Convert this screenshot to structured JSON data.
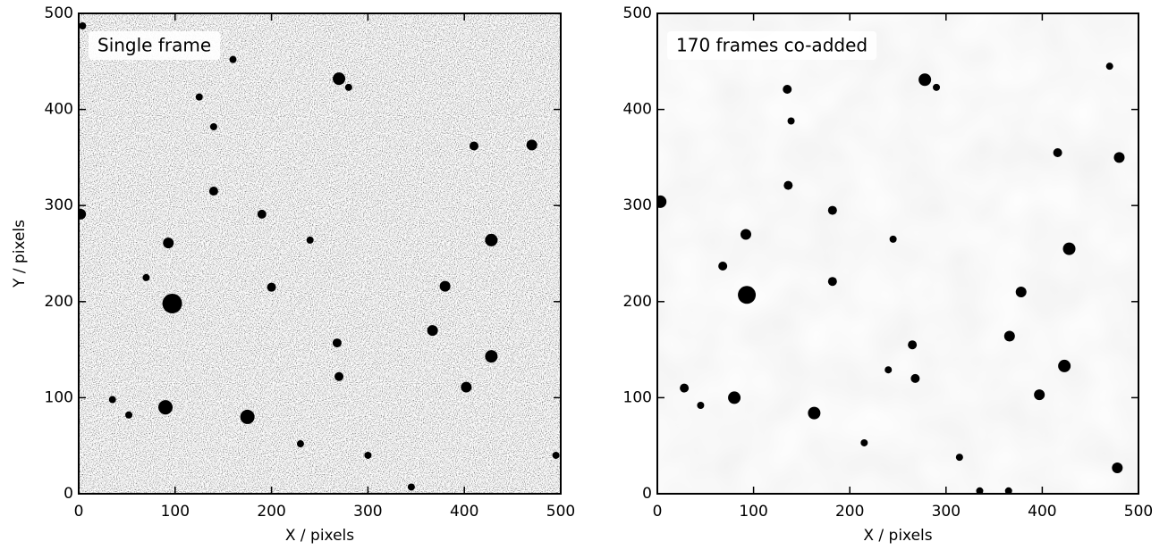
{
  "chart_data": [
    {
      "type": "scatter",
      "annotation": "Single frame",
      "xlabel": "X / pixels",
      "ylabel": "Y / pixels",
      "xlim": [
        0,
        500
      ],
      "ylim": [
        0,
        500
      ],
      "xticks": [
        0,
        100,
        200,
        300,
        400,
        500
      ],
      "yticks": [
        0,
        100,
        200,
        300,
        400,
        500
      ],
      "noise": "heavy",
      "series": [
        {
          "color": "#000000",
          "x": [
            97,
            90,
            175,
            428,
            428,
            470,
            270,
            93,
            380,
            402,
            367,
            410,
            2,
            140,
            140,
            125,
            190,
            200,
            268,
            270,
            240,
            35,
            52,
            70,
            230,
            345,
            495,
            4,
            280,
            160,
            300
          ],
          "y": [
            198,
            90,
            80,
            143,
            264,
            363,
            432,
            261,
            216,
            111,
            170,
            362,
            291,
            315,
            382,
            413,
            291,
            215,
            157,
            122,
            264,
            98,
            82,
            225,
            52,
            7,
            40,
            487,
            423,
            452,
            40
          ],
          "sizes": [
            11,
            8,
            8,
            7,
            7,
            6,
            7,
            6,
            6,
            6,
            6,
            5,
            6,
            5,
            4,
            4,
            5,
            5,
            5,
            5,
            4,
            4,
            4,
            4,
            4,
            4,
            4,
            4,
            4,
            4,
            4
          ]
        }
      ]
    },
    {
      "type": "scatter",
      "annotation": "170 frames co-added",
      "xlabel": "X / pixels",
      "xlim": [
        0,
        500
      ],
      "ylim": [
        0,
        500
      ],
      "xticks": [
        0,
        100,
        200,
        300,
        400,
        500
      ],
      "yticks": [
        0,
        100,
        200,
        300,
        400,
        500
      ],
      "noise": "light",
      "series": [
        {
          "color": "#000000",
          "x": [
            93,
            80,
            163,
            423,
            428,
            480,
            278,
            92,
            378,
            397,
            366,
            416,
            3,
            136,
            139,
            135,
            182,
            182,
            265,
            268,
            245,
            28,
            45,
            68,
            215,
            335,
            478,
            365,
            314,
            290,
            470,
            240
          ],
          "y": [
            207,
            100,
            84,
            133,
            255,
            350,
            431,
            270,
            210,
            103,
            164,
            355,
            304,
            321,
            388,
            421,
            295,
            221,
            155,
            120,
            265,
            110,
            92,
            237,
            53,
            3,
            27,
            3,
            38,
            423,
            445,
            129
          ],
          "sizes": [
            10,
            7,
            7,
            7,
            7,
            6,
            7,
            6,
            6,
            6,
            6,
            5,
            7,
            5,
            4,
            5,
            5,
            5,
            5,
            5,
            4,
            5,
            4,
            5,
            4,
            4,
            6,
            4,
            4,
            4,
            4,
            4
          ]
        }
      ]
    }
  ]
}
